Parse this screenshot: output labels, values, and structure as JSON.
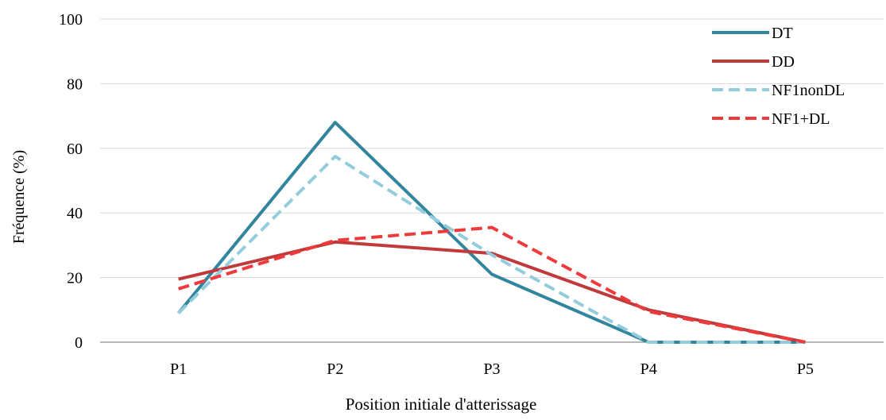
{
  "chart_data": {
    "type": "line",
    "title": "",
    "xlabel": "Position initiale d'atterissage",
    "ylabel": "Fréquence (%)",
    "categories": [
      "P1",
      "P2",
      "P3",
      "P4",
      "P5"
    ],
    "ylim": [
      0,
      100
    ],
    "yticks": [
      0,
      20,
      40,
      60,
      80,
      100
    ],
    "grid": "horizontal",
    "legend_position": "top-right",
    "series": [
      {
        "name": "DT",
        "values": [
          9,
          68,
          21,
          0,
          0
        ],
        "color": "#31859c",
        "dash": "solid"
      },
      {
        "name": "DD",
        "values": [
          19.5,
          31,
          27.5,
          10,
          0
        ],
        "color": "#c0393b",
        "dash": "solid"
      },
      {
        "name": "NF1nonDL",
        "values": [
          9,
          57.5,
          27,
          0,
          0
        ],
        "color": "#93cddd",
        "dash": "dashed"
      },
      {
        "name": "NF1+DL",
        "values": [
          16.5,
          31.5,
          35.5,
          9.5,
          0
        ],
        "color": "#ee3a3a",
        "dash": "dashed"
      }
    ]
  }
}
